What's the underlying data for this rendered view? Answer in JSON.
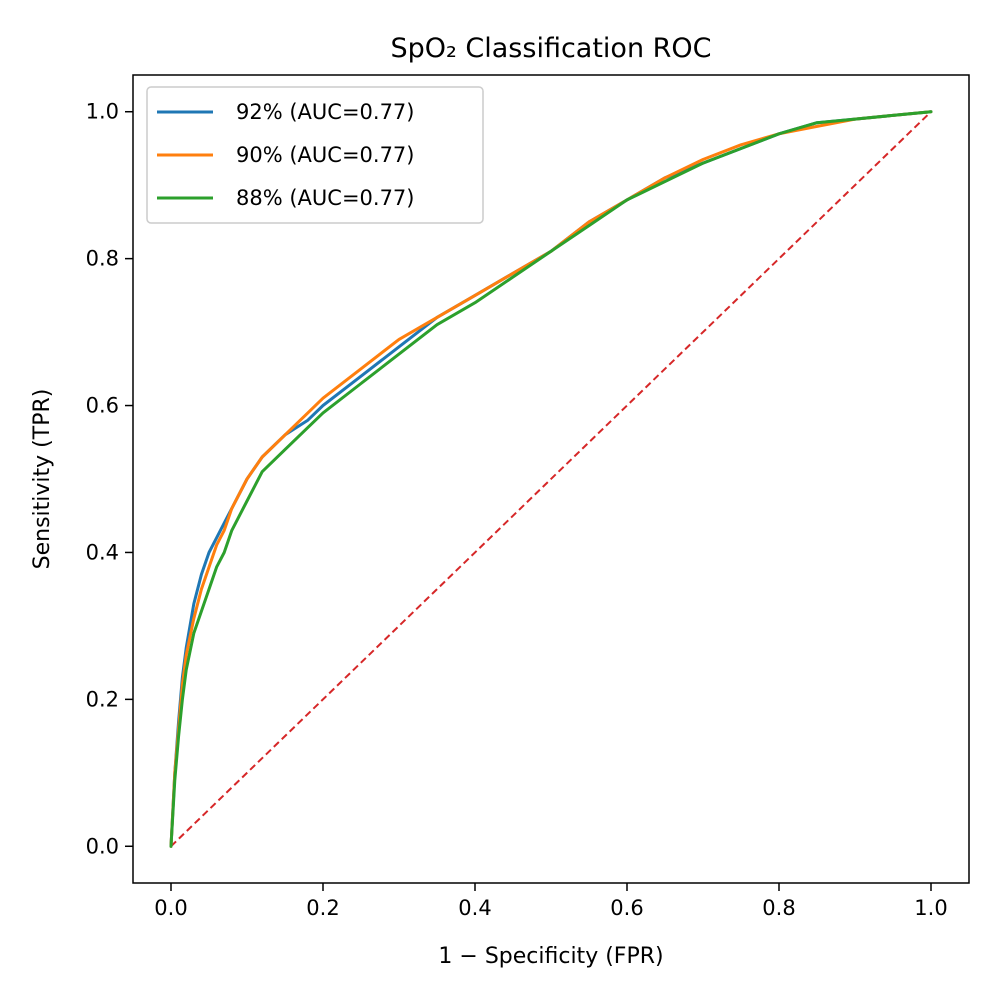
{
  "chart_data": {
    "type": "line",
    "title": "SpO₂ Classification ROC",
    "xlabel": "1 − Specificity (FPR)",
    "ylabel": "Sensitivity (TPR)",
    "xlim": [
      -0.05,
      1.05
    ],
    "ylim": [
      -0.05,
      1.05
    ],
    "xticks": [
      "0.0",
      "0.2",
      "0.4",
      "0.6",
      "0.8",
      "1.0"
    ],
    "yticks": [
      "0.0",
      "0.2",
      "0.4",
      "0.6",
      "0.8",
      "1.0"
    ],
    "grid": false,
    "legend_position": "top-left",
    "series": [
      {
        "name": "92% (AUC=0.77)",
        "color": "#1f77b4",
        "x": [
          0,
          0.005,
          0.01,
          0.015,
          0.02,
          0.03,
          0.04,
          0.05,
          0.06,
          0.07,
          0.08,
          0.1,
          0.12,
          0.15,
          0.18,
          0.2,
          0.25,
          0.3,
          0.35,
          0.4,
          0.45,
          0.5,
          0.55,
          0.6,
          0.65,
          0.7,
          0.75,
          0.8,
          0.85,
          0.9,
          0.95,
          1.0
        ],
        "y": [
          0,
          0.1,
          0.17,
          0.23,
          0.27,
          0.33,
          0.37,
          0.4,
          0.42,
          0.44,
          0.46,
          0.5,
          0.53,
          0.56,
          0.58,
          0.6,
          0.64,
          0.68,
          0.72,
          0.75,
          0.78,
          0.81,
          0.85,
          0.88,
          0.91,
          0.93,
          0.95,
          0.97,
          0.985,
          0.99,
          0.995,
          1.0
        ]
      },
      {
        "name": "90% (AUC=0.77)",
        "color": "#ff7f0e",
        "x": [
          0,
          0.005,
          0.01,
          0.015,
          0.02,
          0.03,
          0.04,
          0.05,
          0.06,
          0.07,
          0.08,
          0.1,
          0.12,
          0.15,
          0.18,
          0.2,
          0.25,
          0.3,
          0.35,
          0.4,
          0.45,
          0.5,
          0.55,
          0.6,
          0.65,
          0.7,
          0.75,
          0.8,
          0.85,
          0.9,
          0.95,
          1.0
        ],
        "y": [
          0,
          0.1,
          0.16,
          0.22,
          0.26,
          0.31,
          0.35,
          0.38,
          0.41,
          0.43,
          0.46,
          0.5,
          0.53,
          0.56,
          0.59,
          0.61,
          0.65,
          0.69,
          0.72,
          0.75,
          0.78,
          0.81,
          0.85,
          0.88,
          0.91,
          0.935,
          0.955,
          0.97,
          0.98,
          0.99,
          0.995,
          1.0
        ]
      },
      {
        "name": "88% (AUC=0.77)",
        "color": "#2ca02c",
        "x": [
          0,
          0.005,
          0.01,
          0.015,
          0.02,
          0.03,
          0.04,
          0.05,
          0.06,
          0.07,
          0.08,
          0.1,
          0.12,
          0.15,
          0.18,
          0.2,
          0.25,
          0.3,
          0.35,
          0.4,
          0.45,
          0.5,
          0.55,
          0.6,
          0.65,
          0.7,
          0.75,
          0.8,
          0.85,
          0.9,
          0.95,
          1.0
        ],
        "y": [
          0,
          0.09,
          0.15,
          0.2,
          0.24,
          0.29,
          0.32,
          0.35,
          0.38,
          0.4,
          0.43,
          0.47,
          0.51,
          0.54,
          0.57,
          0.59,
          0.63,
          0.67,
          0.71,
          0.74,
          0.775,
          0.81,
          0.845,
          0.88,
          0.905,
          0.93,
          0.95,
          0.97,
          0.985,
          0.99,
          0.995,
          1.0
        ]
      }
    ],
    "reference_line": {
      "x": [
        0,
        1
      ],
      "y": [
        0,
        1
      ],
      "color": "#d62728",
      "style": "dashed"
    }
  }
}
